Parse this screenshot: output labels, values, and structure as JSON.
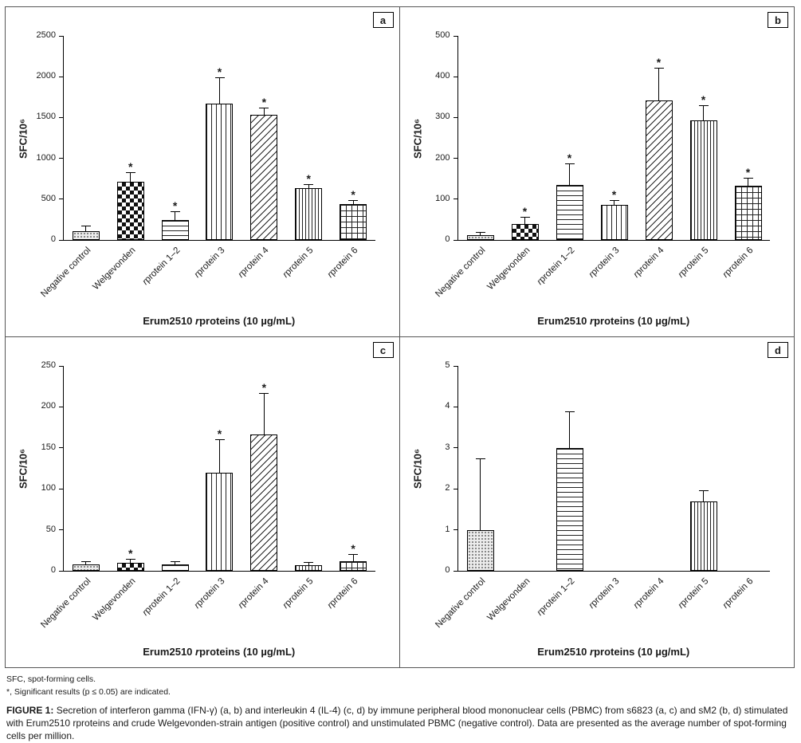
{
  "chart_data": {
    "type": "bar",
    "categories": [
      "Negative control",
      "Welgevonden",
      "rprotein 1–2",
      "rprotein 3",
      "rprotein 4",
      "rprotein 5",
      "rprotein 6"
    ],
    "patterns": [
      "dots",
      "checker",
      "hlines",
      "vlines",
      "diag",
      "vlines-dense",
      "grid"
    ],
    "ylabel": "SFC/10⁶",
    "xlabel": {
      "pre": "Erum2510 ",
      "italic": "r",
      "post": "proteins (10 µg/mL)"
    },
    "legend_position": "none",
    "grid": false,
    "panels": [
      {
        "label": "a",
        "ylim": [
          0,
          2500
        ],
        "ytick_step": 500,
        "values": [
          110,
          710,
          240,
          1670,
          1530,
          630,
          440
        ],
        "errors": [
          60,
          110,
          100,
          310,
          80,
          40,
          40
        ],
        "significant": [
          false,
          true,
          true,
          true,
          true,
          true,
          true
        ]
      },
      {
        "label": "b",
        "ylim": [
          0,
          500
        ],
        "ytick_step": 100,
        "values": [
          12,
          40,
          135,
          85,
          342,
          293,
          133
        ],
        "errors": [
          5,
          15,
          50,
          10,
          78,
          35,
          18
        ],
        "significant": [
          false,
          true,
          true,
          true,
          true,
          true,
          true
        ]
      },
      {
        "label": "c",
        "ylim": [
          0,
          250
        ],
        "ytick_step": 50,
        "values": [
          8,
          10,
          8,
          120,
          166,
          7,
          12
        ],
        "errors": [
          3,
          4,
          3,
          40,
          50,
          3,
          8
        ],
        "significant": [
          false,
          true,
          false,
          true,
          true,
          false,
          true
        ]
      },
      {
        "label": "d",
        "ylim": [
          0,
          5
        ],
        "ytick_step": 1,
        "values": [
          1.0,
          0,
          3.0,
          0,
          0,
          1.7,
          0
        ],
        "errors": [
          1.73,
          0,
          0.88,
          0,
          0,
          0.25,
          0
        ],
        "significant": [
          false,
          false,
          false,
          false,
          false,
          false,
          false
        ]
      }
    ]
  },
  "footnotes": [
    "SFC, spot-forming cells.",
    "*, Significant results (p ≤ 0.05) are indicated."
  ],
  "caption": {
    "label": "FIGURE 1:",
    "text": "Secretion of interferon gamma (IFN-γ) (a, b) and interleukin 4 (IL-4) (c, d) by immune peripheral blood mononuclear cells (PBMC) from s6823 (a, c) and sM2 (b, d) stimulated with Erum2510 rproteins and crude Welgevonden-strain antigen (positive control) and unstimulated PBMC (negative control). Data are presented as the average number of spot-forming cells per million."
  },
  "colors": {
    "axis": "#000000",
    "border": "#555555",
    "bar_outline": "#000000"
  }
}
